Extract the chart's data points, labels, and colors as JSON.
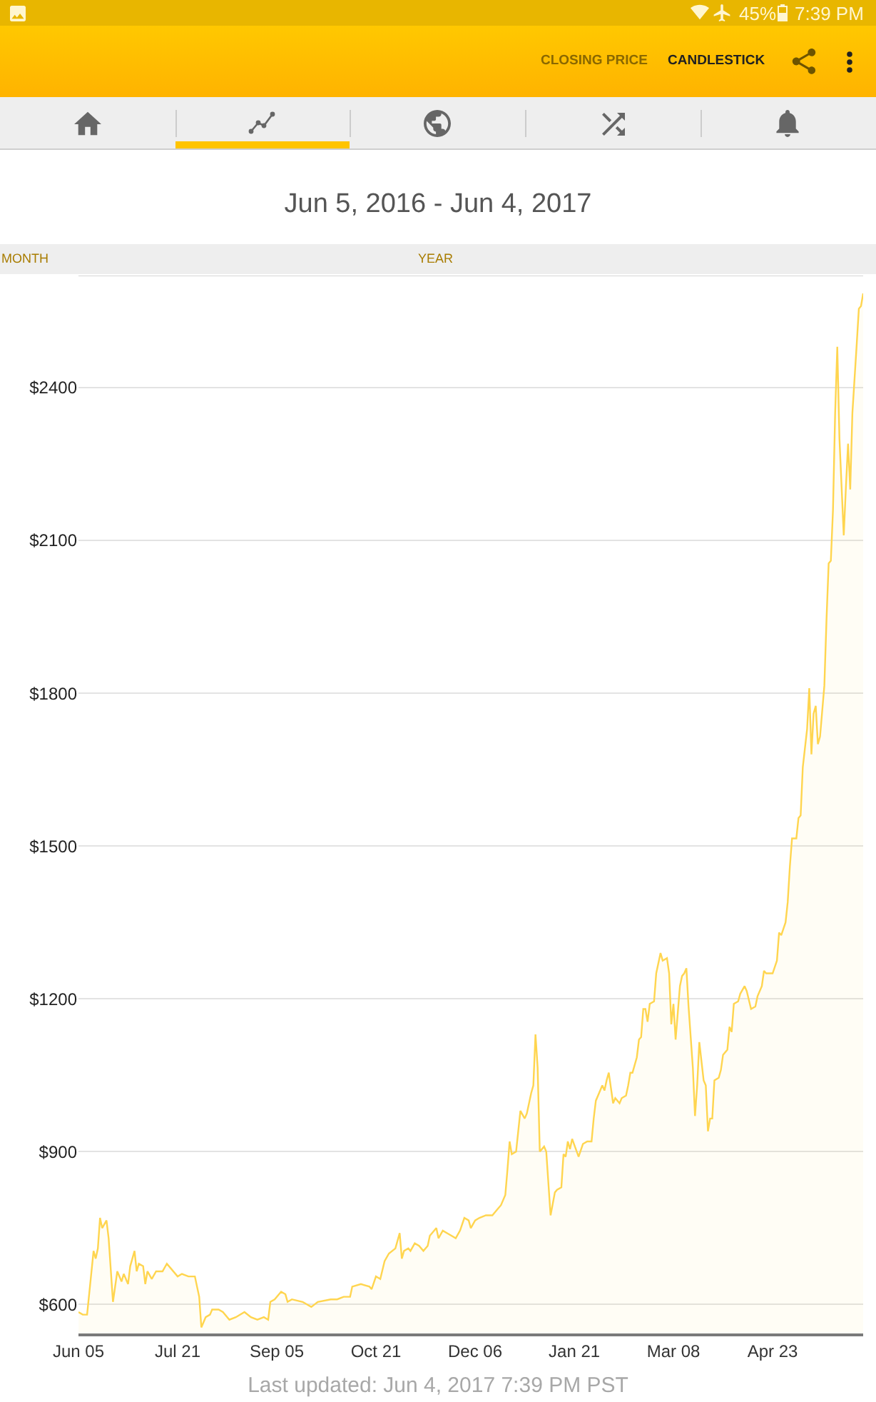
{
  "chart_data": {
    "type": "area",
    "title": "Jun 5, 2016 - Jun 4, 2017",
    "annotations": [
      "45%",
      "7:39 PM",
      "CLOSING PRICE",
      "CANDLESTICK",
      "MONTH",
      "YEAR",
      "Last updated: Jun 4, 2017 7:39 PM PST"
    ],
    "x": [
      "2016-06-05",
      "2016-06-07",
      "2016-06-09",
      "2016-06-12",
      "2016-06-13",
      "2016-06-14",
      "2016-06-15",
      "2016-06-16",
      "2016-06-18",
      "2016-06-19",
      "2016-06-21",
      "2016-06-23",
      "2016-06-25",
      "2016-06-26",
      "2016-06-28",
      "2016-06-29",
      "2016-07-01",
      "2016-07-02",
      "2016-07-03",
      "2016-07-05",
      "2016-07-06",
      "2016-07-07",
      "2016-07-09",
      "2016-07-11",
      "2016-07-14",
      "2016-07-16",
      "2016-07-18",
      "2016-07-21",
      "2016-07-23",
      "2016-07-26",
      "2016-07-29",
      "2016-07-31",
      "2016-08-01",
      "2016-08-03",
      "2016-08-05",
      "2016-08-06",
      "2016-08-09",
      "2016-08-11",
      "2016-08-14",
      "2016-08-17",
      "2016-08-21",
      "2016-08-24",
      "2016-08-27",
      "2016-08-30",
      "2016-09-01",
      "2016-09-02",
      "2016-09-04",
      "2016-09-07",
      "2016-09-09",
      "2016-09-10",
      "2016-09-12",
      "2016-09-17",
      "2016-09-21",
      "2016-09-24",
      "2016-09-30",
      "2016-10-03",
      "2016-10-06",
      "2016-10-09",
      "2016-10-10",
      "2016-10-14",
      "2016-10-18",
      "2016-10-19",
      "2016-10-21",
      "2016-10-23",
      "2016-10-25",
      "2016-10-27",
      "2016-10-30",
      "2016-11-01",
      "2016-11-02",
      "2016-11-03",
      "2016-11-05",
      "2016-11-06",
      "2016-11-08",
      "2016-11-10",
      "2016-11-12",
      "2016-11-14",
      "2016-11-15",
      "2016-11-16",
      "2016-11-18",
      "2016-11-19",
      "2016-11-21",
      "2016-11-23",
      "2016-11-25",
      "2016-11-27",
      "2016-11-29",
      "2016-12-01",
      "2016-12-03",
      "2016-12-04",
      "2016-12-06",
      "2016-12-08",
      "2016-12-11",
      "2016-12-14",
      "2016-12-16",
      "2016-12-18",
      "2016-12-20",
      "2016-12-21",
      "2016-12-22",
      "2016-12-23",
      "2016-12-25",
      "2016-12-27",
      "2016-12-29",
      "2016-12-30",
      "2017-01-01",
      "2017-01-02",
      "2017-01-03",
      "2017-01-04",
      "2017-01-05",
      "2017-01-07",
      "2017-01-08",
      "2017-01-10",
      "2017-01-12",
      "2017-01-13",
      "2017-01-15",
      "2017-01-16",
      "2017-01-17",
      "2017-01-18",
      "2017-01-19",
      "2017-01-20",
      "2017-01-23",
      "2017-01-25",
      "2017-01-27",
      "2017-01-29",
      "2017-01-30",
      "2017-01-31",
      "2017-02-03",
      "2017-02-04",
      "2017-02-05",
      "2017-02-06",
      "2017-02-08",
      "2017-02-09",
      "2017-02-11",
      "2017-02-12",
      "2017-02-14",
      "2017-02-15",
      "2017-02-16",
      "2017-02-17",
      "2017-02-19",
      "2017-02-20",
      "2017-02-21",
      "2017-02-22",
      "2017-02-23",
      "2017-02-24",
      "2017-02-25",
      "2017-02-27",
      "2017-02-28",
      "2017-03-02",
      "2017-03-03",
      "2017-03-05",
      "2017-03-06",
      "2017-03-07",
      "2017-03-08",
      "2017-03-09",
      "2017-03-11",
      "2017-03-12",
      "2017-03-13",
      "2017-03-14",
      "2017-03-15",
      "2017-03-17",
      "2017-03-18",
      "2017-03-19",
      "2017-03-20",
      "2017-03-22",
      "2017-03-23",
      "2017-03-24",
      "2017-03-25",
      "2017-03-26",
      "2017-03-27",
      "2017-03-29",
      "2017-03-30",
      "2017-03-31",
      "2017-04-02",
      "2017-04-03",
      "2017-04-04",
      "2017-04-05",
      "2017-04-07",
      "2017-04-08",
      "2017-04-10",
      "2017-04-11",
      "2017-04-13",
      "2017-04-15",
      "2017-04-16",
      "2017-04-18",
      "2017-04-19",
      "2017-04-20",
      "2017-04-23",
      "2017-04-25",
      "2017-04-26",
      "2017-04-27",
      "2017-04-29",
      "2017-04-30",
      "2017-05-01",
      "2017-05-02",
      "2017-05-04",
      "2017-05-05",
      "2017-05-06",
      "2017-05-07",
      "2017-05-09",
      "2017-05-10",
      "2017-05-11",
      "2017-05-12",
      "2017-05-13",
      "2017-05-14",
      "2017-05-15",
      "2017-05-17",
      "2017-05-18",
      "2017-05-19",
      "2017-05-20",
      "2017-05-21",
      "2017-05-22",
      "2017-05-23",
      "2017-05-24",
      "2017-05-26",
      "2017-05-27",
      "2017-05-28",
      "2017-05-29",
      "2017-05-30",
      "2017-06-01",
      "2017-06-02",
      "2017-06-03",
      "2017-06-04"
    ],
    "values": [
      585,
      580,
      580,
      705,
      690,
      710,
      770,
      750,
      765,
      730,
      605,
      665,
      645,
      660,
      640,
      675,
      705,
      665,
      680,
      675,
      640,
      665,
      650,
      665,
      665,
      680,
      670,
      655,
      660,
      655,
      655,
      615,
      555,
      575,
      580,
      590,
      590,
      585,
      570,
      575,
      585,
      575,
      570,
      575,
      570,
      605,
      610,
      625,
      620,
      605,
      610,
      605,
      595,
      605,
      610,
      610,
      615,
      615,
      635,
      640,
      635,
      630,
      655,
      650,
      685,
      700,
      710,
      740,
      690,
      705,
      710,
      705,
      720,
      715,
      705,
      715,
      735,
      740,
      750,
      730,
      745,
      740,
      735,
      730,
      745,
      770,
      765,
      750,
      765,
      770,
      775,
      775,
      785,
      795,
      815,
      865,
      920,
      895,
      900,
      980,
      965,
      975,
      1015,
      1030,
      1130,
      1065,
      900,
      910,
      900,
      775,
      820,
      825,
      830,
      895,
      890,
      920,
      905,
      925,
      890,
      915,
      920,
      920,
      965,
      1000,
      1030,
      1020,
      1040,
      1055,
      995,
      1005,
      995,
      1005,
      1010,
      1030,
      1055,
      1055,
      1085,
      1120,
      1125,
      1180,
      1180,
      1155,
      1190,
      1195,
      1250,
      1290,
      1275,
      1280,
      1250,
      1150,
      1190,
      1120,
      1225,
      1245,
      1250,
      1260,
      1185,
      1065,
      970,
      1030,
      1115,
      1040,
      1030,
      940,
      965,
      965,
      1040,
      1045,
      1060,
      1090,
      1100,
      1145,
      1135,
      1190,
      1195,
      1210,
      1225,
      1215,
      1180,
      1185,
      1205,
      1225,
      1255,
      1250,
      1250,
      1275,
      1330,
      1325,
      1350,
      1390,
      1460,
      1515,
      1515,
      1555,
      1560,
      1655,
      1730,
      1810,
      1680,
      1760,
      1775,
      1700,
      1715,
      1815,
      1945,
      2055,
      2060,
      2160,
      2350,
      2480,
      2300,
      2110,
      2205,
      2290,
      2200,
      2350,
      2485,
      2555,
      2560,
      2585
    ],
    "color": "#ffd54f",
    "xlim": [
      "2016-06-05",
      "2017-06-04"
    ],
    "xticks": [
      {
        "value": "2016-06-05",
        "label": "Jun 05"
      },
      {
        "value": "2016-07-21",
        "label": "Jul 21"
      },
      {
        "value": "2016-09-05",
        "label": "Sep 05"
      },
      {
        "value": "2016-10-21",
        "label": "Oct 21"
      },
      {
        "value": "2016-12-06",
        "label": "Dec 06"
      },
      {
        "value": "2017-01-21",
        "label": "Jan 21"
      },
      {
        "value": "2017-03-08",
        "label": "Mar 08"
      },
      {
        "value": "2017-04-23",
        "label": "Apr 23"
      }
    ],
    "ylim": [
      543,
      2620
    ],
    "yticks": [
      {
        "value": 600,
        "label": "$600"
      },
      {
        "value": 900,
        "label": "$900"
      },
      {
        "value": 1200,
        "label": "$1200"
      },
      {
        "value": 1500,
        "label": "$1500"
      },
      {
        "value": 1800,
        "label": "$1800"
      },
      {
        "value": 2100,
        "label": "$2100"
      },
      {
        "value": 2400,
        "label": "$2400"
      }
    ],
    "grid": "y"
  }
}
